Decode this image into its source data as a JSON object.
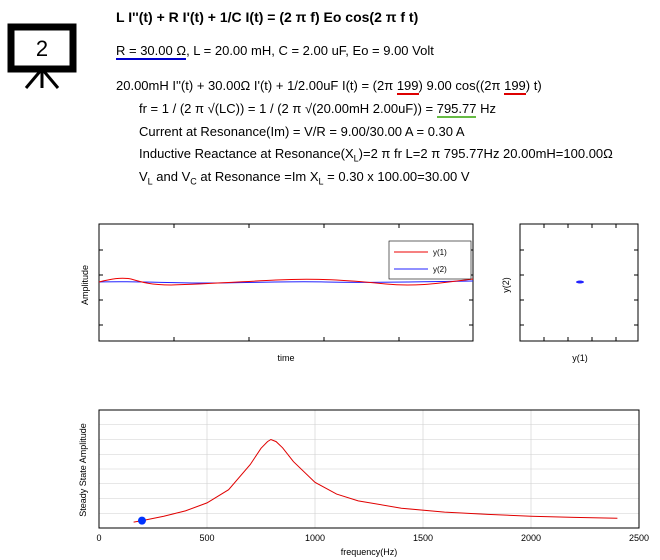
{
  "slide_number": "2",
  "header": {
    "equation": "L I''(t) + R I'(t) + 1/C I(t) = (2 π f) Eo cos(2 π f t)",
    "params_r": "R = 30.00 Ω",
    "params_rest": ", L = 20.00 mH, C = 2.00 uF, Eo = 9.00 Volt",
    "line3_a": "20.00mH I''(t) + 30.00Ω I'(t) + 1/2.00uF I(t) = (2π ",
    "line3_f1": "199",
    "line3_b": ") 9.00 cos((2π ",
    "line3_f2": "199",
    "line3_c": ") t)",
    "line4_a": "fr = 1 / (2 π √(LC)) = 1 / (2 π √(20.00mH 2.00uF)) = ",
    "line4_fr": "795.77",
    "line4_b": " Hz",
    "line5": "Current at Resonance(Im) = V/R = 9.00/30.00 A = 0.30 A",
    "line6_a": "Inductive Reactance at Resonance(X",
    "line6_sub": "L",
    "line6_b": ")=2 π fr L=2 π 795.77Hz 20.00mH=100.00Ω",
    "line7_v": "V",
    "line7_sub1": "L",
    "line7_and": " and V",
    "line7_sub2": "C",
    "line7_b": " at Resonance =Im X",
    "line7_sub3": "L",
    "line7_c": " = 0.30 x 100.00=30.00 V"
  },
  "plot_time": {
    "ylabel": "Amplitude",
    "xlabel": "time",
    "legend": [
      "y(1)",
      "y(2)"
    ]
  },
  "plot_phase": {
    "ylabel": "y(2)",
    "xlabel": "y(1)"
  },
  "chart_data": {
    "type": "line",
    "xlabel": "frequency(Hz)",
    "ylabel": "Steady State Amplitude",
    "xlim": [
      0,
      2500
    ],
    "ylim": [
      0,
      0.4
    ],
    "x_ticks": [
      0,
      500,
      1000,
      1500,
      2000,
      2500
    ],
    "x_tick_labels": [
      "0",
      "500",
      "1000",
      "1500",
      "2000",
      "2500"
    ],
    "series": [
      {
        "color": "#e00000",
        "x": [
          160,
          200,
          300,
          400,
          500,
          600,
          700,
          750,
          780,
          795.77,
          820,
          850,
          900,
          1000,
          1100,
          1200,
          1400,
          1600,
          1800,
          2000,
          2200,
          2400
        ],
        "y": [
          0.02,
          0.025,
          0.04,
          0.058,
          0.085,
          0.13,
          0.215,
          0.27,
          0.293,
          0.3,
          0.293,
          0.272,
          0.225,
          0.155,
          0.115,
          0.092,
          0.067,
          0.054,
          0.046,
          0.04,
          0.036,
          0.033
        ]
      }
    ],
    "marker": {
      "x": 199,
      "y": 0.025,
      "color": "#0033ff"
    }
  }
}
